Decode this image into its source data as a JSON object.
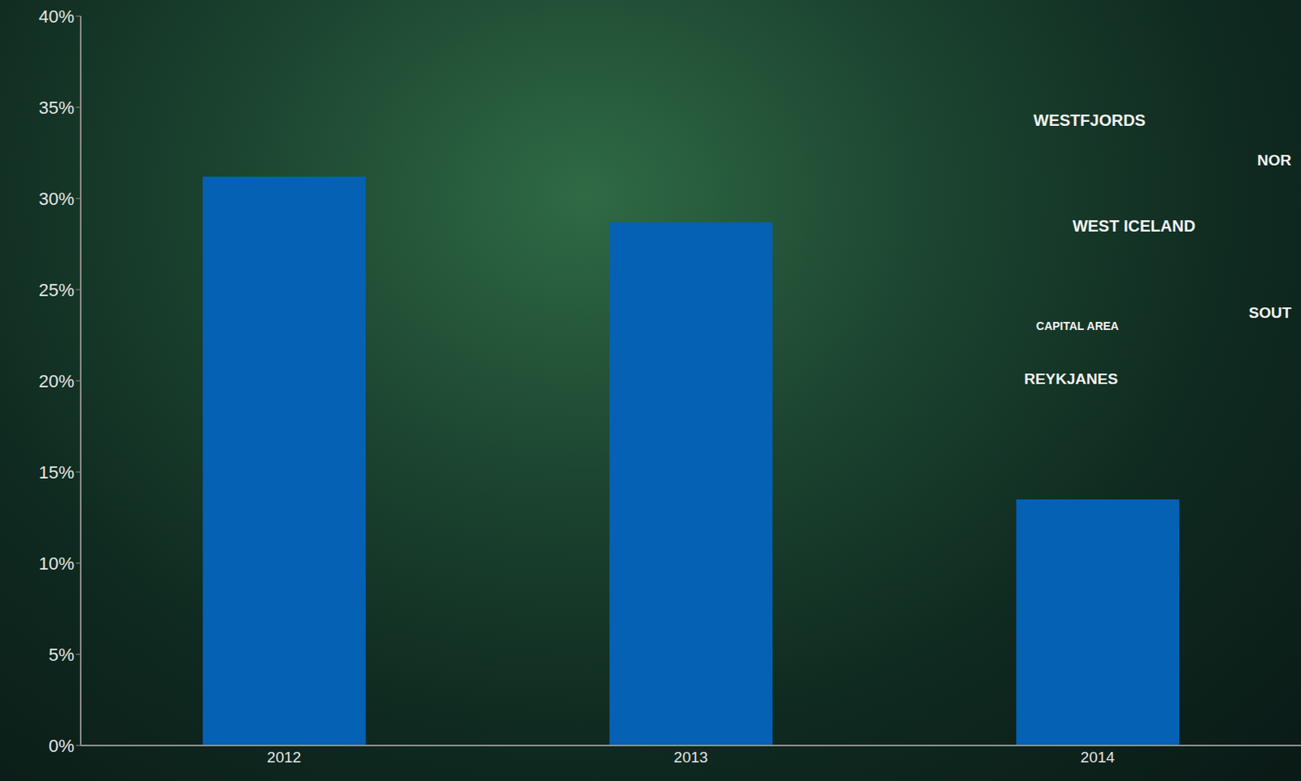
{
  "chart_data": {
    "type": "bar",
    "categories": [
      "2012",
      "2013",
      "2014"
    ],
    "values": [
      31.2,
      28.7,
      13.5
    ],
    "color": "#0561b3",
    "ylim": [
      0,
      40
    ],
    "yticks": [
      {
        "value": 0,
        "label": "0%"
      },
      {
        "value": 5,
        "label": "5%"
      },
      {
        "value": 10,
        "label": "10%"
      },
      {
        "value": 15,
        "label": "15%"
      },
      {
        "value": 20,
        "label": "20%"
      },
      {
        "value": 25,
        "label": "25%"
      },
      {
        "value": 30,
        "label": "30%"
      },
      {
        "value": 35,
        "label": "35%"
      },
      {
        "value": 40,
        "label": "40%"
      }
    ],
    "grid": false,
    "annotations": [
      "WESTFJORDS",
      "WEST ICELAND",
      "CAPITAL AREA",
      "REYKJANES",
      "NOR",
      "SOUT"
    ]
  }
}
